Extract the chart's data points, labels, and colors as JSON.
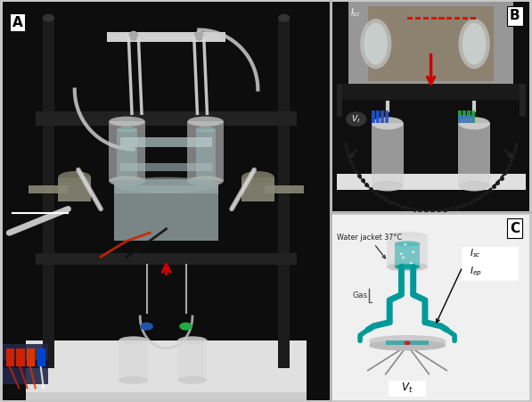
{
  "figsize": [
    5.97,
    4.51
  ],
  "dpi": 100,
  "fig_bg": "#c8c8c8",
  "border_color": "#aaaaaa",
  "panel_A": {
    "label": "A",
    "bg": "#151515",
    "label_color": "white",
    "label_bg": "white",
    "label_text_color": "black"
  },
  "panel_B": {
    "label": "B",
    "bg": "#111111",
    "label_bg": "white",
    "label_text_color": "black"
  },
  "panel_C": {
    "label": "C",
    "bg": "#f0f0f0",
    "label_bg": "white",
    "label_text_color": "black"
  },
  "label_fontsize": 11,
  "red_arrow": "#cc0000",
  "teal": "#009999",
  "light_teal": "#55bbbb",
  "water_jacket_text": "Water jacket 37°C",
  "gas_text": "Gas",
  "white_color": "#ffffff",
  "gray_glass": "#c8c8c8",
  "dark_gray": "#3a3a3a",
  "black": "#080808",
  "platform_color": "#e8e8e8",
  "bottle_color": "#d8d8d8",
  "wire_red": "#cc2200",
  "wire_white": "#dddddd"
}
